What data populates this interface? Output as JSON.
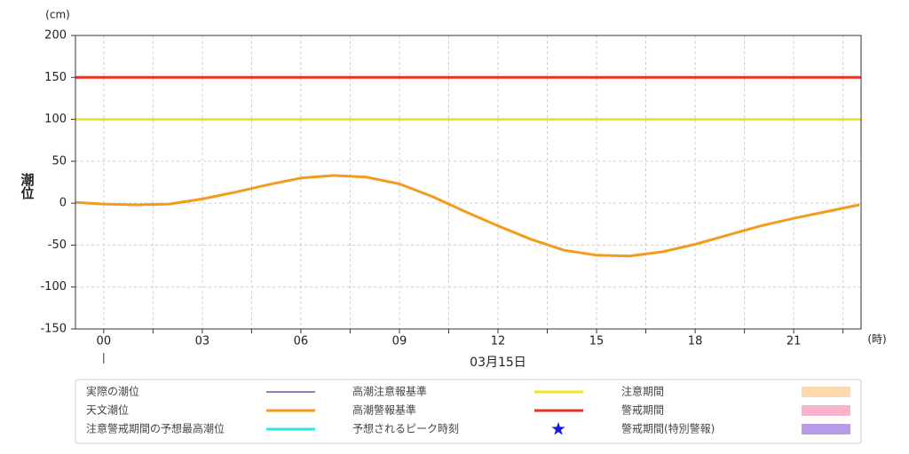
{
  "chart_data": {
    "type": "line",
    "y_label": "潮位",
    "y_unit": "(cm)",
    "x_unit": "(時)",
    "date_label": "03月15日",
    "xlim": [
      -0.86,
      23.05
    ],
    "ylim": [
      -150,
      200
    ],
    "yticks": [
      -150,
      -100,
      -50,
      0,
      50,
      100,
      150,
      200
    ],
    "xticks": [
      {
        "value": 0,
        "label": "00"
      },
      {
        "value": 3,
        "label": "03"
      },
      {
        "value": 6,
        "label": "06"
      },
      {
        "value": 9,
        "label": "09"
      },
      {
        "value": 12,
        "label": "12"
      },
      {
        "value": 15,
        "label": "15"
      },
      {
        "value": 18,
        "label": "18"
      },
      {
        "value": 21,
        "label": "21"
      }
    ],
    "x_minor_grid": [
      1.5,
      4.5,
      7.5,
      10.5,
      13.5,
      16.5,
      19.5,
      22.5
    ],
    "grid": true,
    "x": [
      -0.86,
      0,
      1,
      2,
      3,
      4,
      5,
      6,
      7,
      8,
      9,
      10,
      11,
      12,
      13,
      14,
      15,
      16,
      17,
      18,
      19,
      20,
      21,
      22,
      23
    ],
    "series": [
      {
        "name": "実際の潮位",
        "color": "#7a4fa8",
        "symbol": "thin-line"
      },
      {
        "name": "天文潮位",
        "color": "#f29b1d",
        "symbol": "line",
        "values": [
          1,
          -1,
          -2,
          -1,
          5,
          13,
          22,
          30,
          33,
          31,
          23,
          8,
          -10,
          -27,
          -43,
          -56,
          -62,
          -63,
          -58,
          -49,
          -38,
          -27,
          -18,
          -10,
          -2
        ]
      },
      {
        "name": "注意警戒期間の予想最高潮位",
        "color": "#33e6e6",
        "symbol": "line"
      },
      {
        "name": "高潮注意報基準",
        "color": "#f0e626",
        "symbol": "line",
        "value": 100
      },
      {
        "name": "高潮警報基準",
        "color": "#e8321e",
        "symbol": "line",
        "value": 150
      },
      {
        "name": "予想されるピーク時刻",
        "color": "#1a1adc",
        "symbol": "star"
      },
      {
        "name": "注意期間",
        "color": "#fcd9ae",
        "symbol": "box"
      },
      {
        "name": "警戒期間",
        "color": "#f9b4c9",
        "symbol": "box"
      },
      {
        "name": "警戒期間(特別警報)",
        "color": "#b79be6",
        "symbol": "box"
      }
    ]
  }
}
